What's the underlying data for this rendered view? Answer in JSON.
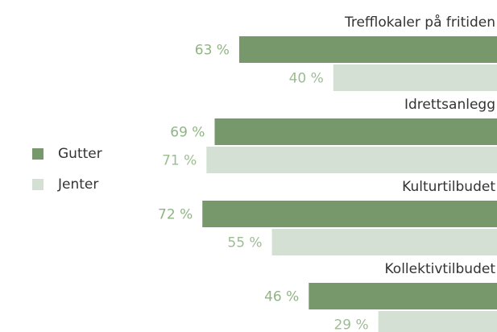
{
  "chart_data": {
    "type": "bar",
    "orientation": "horizontal",
    "categories": [
      "Trefflokaler på fritiden",
      "Idrettsanlegg",
      "Kulturtilbudet",
      "Kollektivtilbudet"
    ],
    "series": [
      {
        "name": "Gutter",
        "color": "#76986a",
        "label_color": "#8fb584",
        "values": [
          63,
          69,
          72,
          46
        ],
        "value_labels": [
          "63 %",
          "69 %",
          "72 %",
          "46 %"
        ]
      },
      {
        "name": "Jenter",
        "color": "#d4e0d4",
        "label_color": "#9cbd92",
        "values": [
          40,
          71,
          55,
          29
        ],
        "value_labels": [
          "40 %",
          "71 %",
          "55 %",
          "29 %"
        ]
      }
    ],
    "legend": "left"
  }
}
